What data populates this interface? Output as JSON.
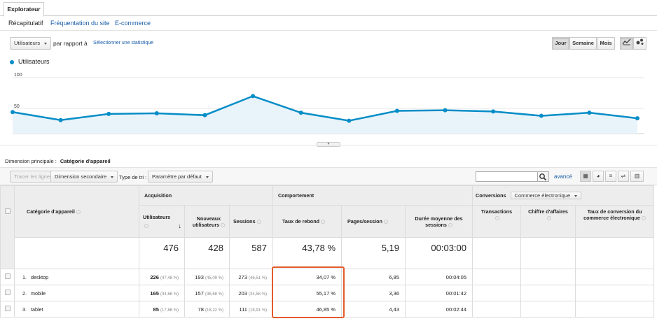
{
  "tabs": {
    "explorer": "Explorateur"
  },
  "subtabs": [
    "Récapitulatif",
    "Fréquentation du site",
    "E-commerce"
  ],
  "metric_select": "Utilisateurs",
  "compare_label": "par rapport à",
  "select_stat_link": "Sélectionner une statistique",
  "period_buttons": [
    "Jour",
    "Semaine",
    "Mois"
  ],
  "legend": "Utilisateurs",
  "chart_data": {
    "type": "area",
    "series": [
      {
        "name": "Utilisateurs",
        "values": [
          44,
          31,
          41,
          42,
          39,
          70,
          43,
          30,
          46,
          47,
          45,
          38,
          43,
          34
        ]
      }
    ],
    "ylim": [
      0,
      100
    ],
    "yticks": [
      "100",
      "50"
    ]
  },
  "dimension": {
    "label": "Dimension principale :",
    "value": "Catégorie d'appareil"
  },
  "toolbar": {
    "plot_rows": "Tracer les lignes",
    "secondary_dimension": "Dimension secondaire",
    "sort_type_label": "Type de tri :",
    "sort_default": "Paramètre par défaut",
    "advanced": "avancé"
  },
  "table": {
    "groups": {
      "acquisition": "Acquisition",
      "behavior": "Comportement",
      "conversions": "Conversions",
      "conversion_select": "Commerce électronique"
    },
    "dim_header": "Catégorie d'appareil",
    "columns": [
      "Utilisateurs",
      "Nouveaux utilisateurs",
      "Sessions",
      "Taux de rebond",
      "Pages/session",
      "Durée moyenne des sessions",
      "Transactions",
      "Chiffre d'affaires",
      "Taux de conversion du commerce électronique"
    ],
    "totals": [
      "476",
      "428",
      "587",
      "43,78 %",
      "5,19",
      "00:03:00"
    ],
    "rows": [
      {
        "index": "1.",
        "name": "desktop",
        "users": "226",
        "users_pct": "(47,48 %)",
        "new_users": "193",
        "new_users_pct": "(45,09 %)",
        "sessions": "273",
        "sessions_pct": "(46,51 %)",
        "bounce": "34,07 %",
        "pages": "6,85",
        "duration": "00:04:05"
      },
      {
        "index": "2.",
        "name": "mobile",
        "users": "165",
        "users_pct": "(34,66 %)",
        "new_users": "157",
        "new_users_pct": "(36,68 %)",
        "sessions": "203",
        "sessions_pct": "(34,58 %)",
        "bounce": "55,17 %",
        "pages": "3,36",
        "duration": "00:01:42"
      },
      {
        "index": "3.",
        "name": "tablet",
        "users": "85",
        "users_pct": "(17,86 %)",
        "new_users": "78",
        "new_users_pct": "(18,22 %)",
        "sessions": "111",
        "sessions_pct": "(18,91 %)",
        "bounce": "46,85 %",
        "pages": "4,43",
        "duration": "00:02:44"
      }
    ]
  }
}
